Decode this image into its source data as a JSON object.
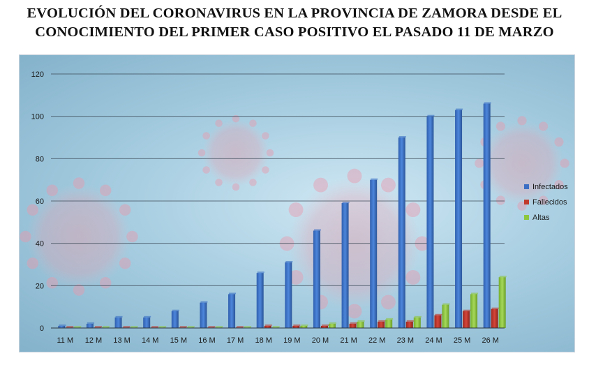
{
  "title_line1": "EVOLUCIÓN DEL CORONAVIRUS EN LA PROVINCIA DE ZAMORA DESDE EL",
  "title_line2": "CONOCIMIENTO DEL PRIMER CASO POSITIVO EL PASADO 11 DE MARZO",
  "chart_data": {
    "type": "bar",
    "title": "EVOLUCIÓN DEL CORONAVIRUS EN LA PROVINCIA DE ZAMORA DESDE EL CONOCIMIENTO DEL PRIMER CASO POSITIVO EL PASADO 11 DE MARZO",
    "categories": [
      "11 M",
      "12 M",
      "13 M",
      "14 M",
      "15 M",
      "16 M",
      "17 M",
      "18 M",
      "19 M",
      "20 M",
      "21 M",
      "22 M",
      "23 M",
      "24 M",
      "25 M",
      "26 M"
    ],
    "series": [
      {
        "name": "Infectados",
        "color": "#3b6fc4",
        "values": [
          1,
          2,
          5,
          5,
          8,
          12,
          16,
          26,
          31,
          46,
          59,
          70,
          90,
          100,
          103,
          106
        ]
      },
      {
        "name": "Fallecidos",
        "color": "#c0392b",
        "values": [
          0,
          0,
          0,
          0,
          0,
          0,
          0,
          1,
          1,
          1,
          2,
          3,
          3,
          6,
          8,
          9
        ]
      },
      {
        "name": "Altas",
        "color": "#8dc63f",
        "values": [
          0,
          0,
          0,
          0,
          0,
          0,
          0,
          0,
          1,
          2,
          3,
          4,
          5,
          11,
          16,
          24
        ]
      }
    ],
    "yticks": [
      0,
      20,
      40,
      60,
      80,
      100,
      120
    ],
    "ylim": [
      0,
      120
    ],
    "grid": true,
    "legend": "right",
    "xlabel": "",
    "ylabel": ""
  }
}
